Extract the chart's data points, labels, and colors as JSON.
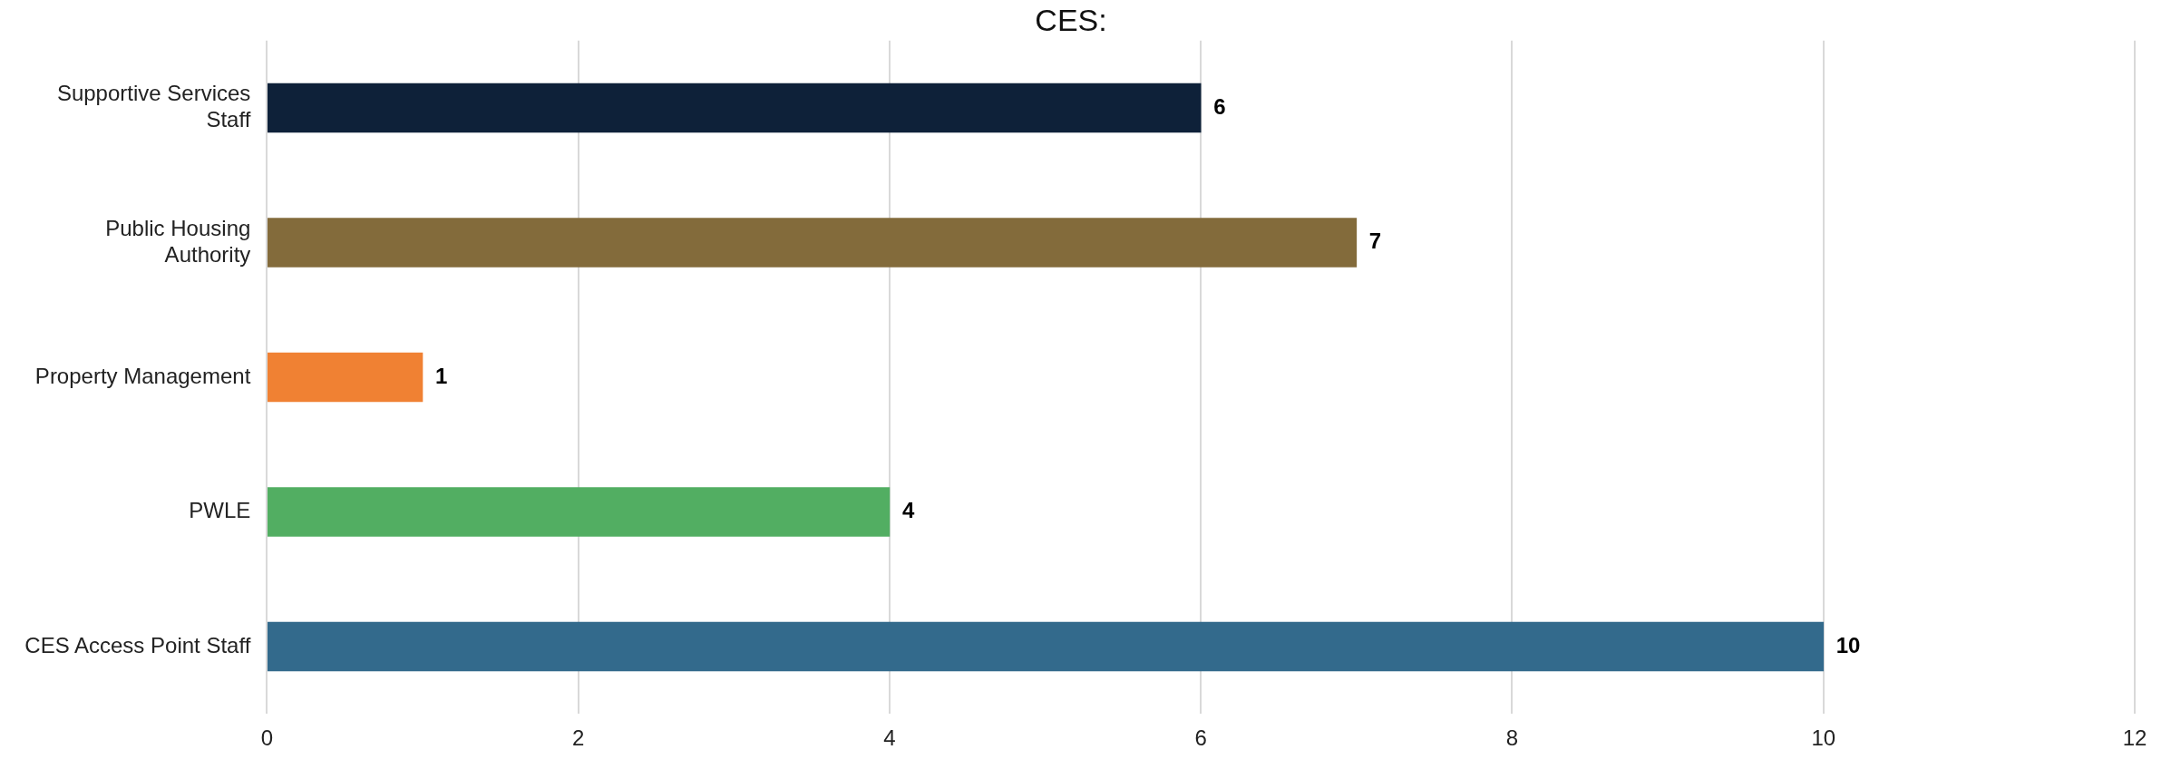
{
  "chart_data": {
    "type": "bar",
    "orientation": "horizontal",
    "title": "CES:",
    "categories": [
      "Supportive Services Staff",
      "Public Housing Authority",
      "Property Management",
      "PWLE",
      "CES Access Point Staff"
    ],
    "values": [
      6,
      7,
      1,
      4,
      10
    ],
    "colors": [
      "#0e2139",
      "#836b3b",
      "#f08133",
      "#52ae62",
      "#336a8c"
    ],
    "xlim": [
      0,
      12
    ],
    "xticks": [
      0,
      2,
      4,
      6,
      8,
      10,
      12
    ],
    "grid": "x",
    "legend": false,
    "data_labels": true
  }
}
